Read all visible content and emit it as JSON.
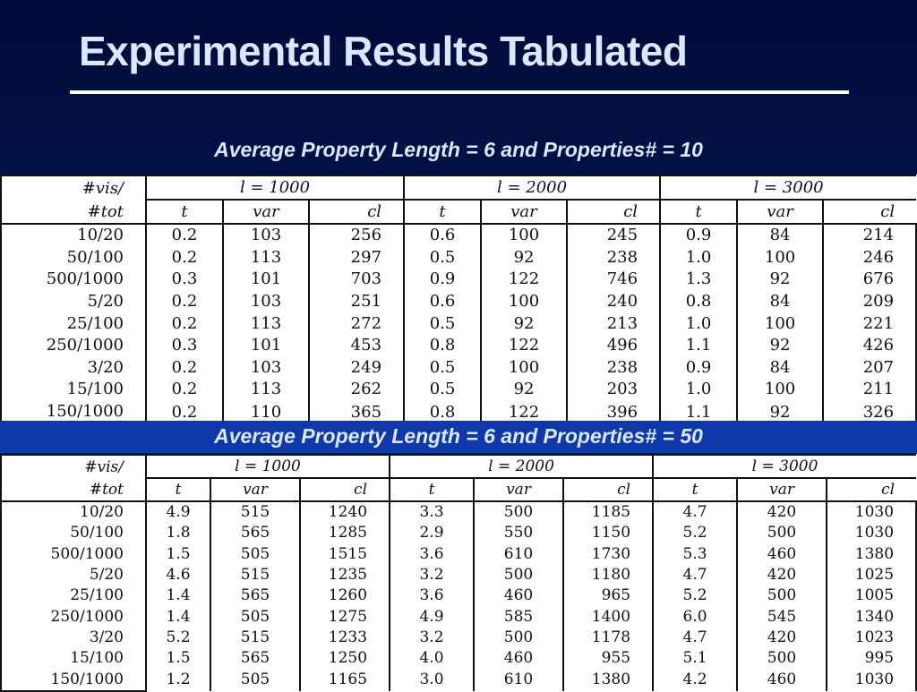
{
  "slide": {
    "title": "Experimental Results Tabulated",
    "caption1": "Average Property Length = 6 and Properties# = 10",
    "caption2": "Average Property Length = 6 and Properties# = 50"
  },
  "table_header": {
    "corner_top": "#vis/",
    "corner_bottom": "#tot",
    "groups": [
      "l = 1000",
      "l = 2000",
      "l = 3000"
    ],
    "subcols": [
      "t",
      "var",
      "cl"
    ]
  },
  "table1": {
    "rows": [
      {
        "label": "10/20",
        "v": [
          "0.2",
          "103",
          "256",
          "0.6",
          "100",
          "245",
          "0.9",
          "84",
          "214"
        ]
      },
      {
        "label": "50/100",
        "v": [
          "0.2",
          "113",
          "297",
          "0.5",
          "92",
          "238",
          "1.0",
          "100",
          "246"
        ]
      },
      {
        "label": "500/1000",
        "v": [
          "0.3",
          "101",
          "703",
          "0.9",
          "122",
          "746",
          "1.3",
          "92",
          "676"
        ]
      },
      {
        "label": "5/20",
        "v": [
          "0.2",
          "103",
          "251",
          "0.6",
          "100",
          "240",
          "0.8",
          "84",
          "209"
        ]
      },
      {
        "label": "25/100",
        "v": [
          "0.2",
          "113",
          "272",
          "0.5",
          "92",
          "213",
          "1.0",
          "100",
          "221"
        ]
      },
      {
        "label": "250/1000",
        "v": [
          "0.3",
          "101",
          "453",
          "0.8",
          "122",
          "496",
          "1.1",
          "92",
          "426"
        ]
      },
      {
        "label": "3/20",
        "v": [
          "0.2",
          "103",
          "249",
          "0.5",
          "100",
          "238",
          "0.9",
          "84",
          "207"
        ]
      },
      {
        "label": "15/100",
        "v": [
          "0.2",
          "113",
          "262",
          "0.5",
          "92",
          "203",
          "1.0",
          "100",
          "211"
        ]
      },
      {
        "label": "150/1000",
        "v": [
          "0.2",
          "110",
          "365",
          "0.8",
          "122",
          "396",
          "1.1",
          "92",
          "326"
        ]
      }
    ]
  },
  "table2": {
    "rows": [
      {
        "label": "10/20",
        "v": [
          "4.9",
          "515",
          "1240",
          "3.3",
          "500",
          "1185",
          "4.7",
          "420",
          "1030"
        ]
      },
      {
        "label": "50/100",
        "v": [
          "1.8",
          "565",
          "1285",
          "2.9",
          "550",
          "1150",
          "5.2",
          "500",
          "1030"
        ]
      },
      {
        "label": "500/1000",
        "v": [
          "1.5",
          "505",
          "1515",
          "3.6",
          "610",
          "1730",
          "5.3",
          "460",
          "1380"
        ]
      },
      {
        "label": "5/20",
        "v": [
          "4.6",
          "515",
          "1235",
          "3.2",
          "500",
          "1180",
          "4.7",
          "420",
          "1025"
        ]
      },
      {
        "label": "25/100",
        "v": [
          "1.4",
          "565",
          "1260",
          "3.6",
          "460",
          "965",
          "5.2",
          "500",
          "1005"
        ]
      },
      {
        "label": "250/1000",
        "v": [
          "1.4",
          "505",
          "1275",
          "4.9",
          "585",
          "1400",
          "6.0",
          "545",
          "1340"
        ]
      },
      {
        "label": "3/20",
        "v": [
          "5.2",
          "515",
          "1233",
          "3.2",
          "500",
          "1178",
          "4.7",
          "420",
          "1023"
        ]
      },
      {
        "label": "15/100",
        "v": [
          "1.5",
          "565",
          "1250",
          "4.0",
          "460",
          "955",
          "5.1",
          "500",
          "995"
        ]
      },
      {
        "label": "150/1000",
        "v": [
          "1.2",
          "505",
          "1165",
          "3.0",
          "610",
          "1380",
          "4.2",
          "460",
          "1030"
        ]
      }
    ]
  }
}
